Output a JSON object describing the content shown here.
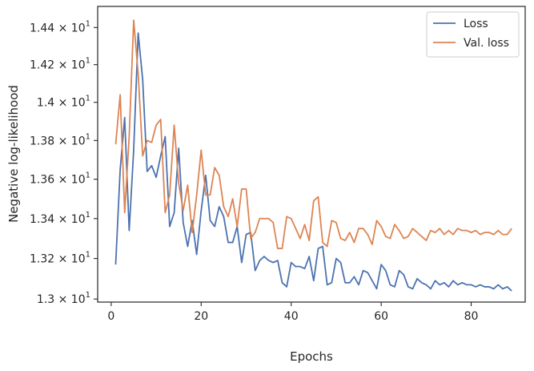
{
  "chart_data": {
    "type": "line",
    "xlabel": "Epochs",
    "ylabel": "Negative log-likelihood",
    "xlim": [
      -3,
      92
    ],
    "ylim": [
      12.985,
      14.515
    ],
    "yscale": "log",
    "xticks": [
      0,
      20,
      40,
      60,
      80
    ],
    "yticks": [
      13.0,
      13.2,
      13.4,
      13.6,
      13.8,
      14.0,
      14.2,
      14.4
    ],
    "ytick_labels": [
      "1.3 × 10",
      "1.32 × 10",
      "1.34 × 10",
      "1.36 × 10",
      "1.38 × 10",
      "1.4 × 10",
      "1.42 × 10",
      "1.44 × 10"
    ],
    "ytick_exponent": "1",
    "legend_position": "top-right",
    "grid": false,
    "x": [
      1,
      2,
      3,
      4,
      5,
      6,
      7,
      8,
      9,
      10,
      11,
      12,
      13,
      14,
      15,
      16,
      17,
      18,
      19,
      20,
      21,
      22,
      23,
      24,
      25,
      26,
      27,
      28,
      29,
      30,
      31,
      32,
      33,
      34,
      35,
      36,
      37,
      38,
      39,
      40,
      41,
      42,
      43,
      44,
      45,
      46,
      47,
      48,
      49,
      50,
      51,
      52,
      53,
      54,
      55,
      56,
      57,
      58,
      59,
      60,
      61,
      62,
      63,
      64,
      65,
      66,
      67,
      68,
      69,
      70,
      71,
      72,
      73,
      74,
      75,
      76,
      77,
      78,
      79,
      80,
      81,
      82,
      83,
      84,
      85,
      86,
      87,
      88,
      89
    ],
    "series": [
      {
        "name": "Loss",
        "color": "#4c72b0",
        "values": [
          13.17,
          13.65,
          13.92,
          13.34,
          13.75,
          14.37,
          14.12,
          13.64,
          13.67,
          13.61,
          13.72,
          13.82,
          13.36,
          13.43,
          13.76,
          13.38,
          13.26,
          13.39,
          13.22,
          13.44,
          13.62,
          13.39,
          13.36,
          13.46,
          13.41,
          13.28,
          13.28,
          13.36,
          13.18,
          13.32,
          13.33,
          13.14,
          13.19,
          13.21,
          13.19,
          13.18,
          13.19,
          13.08,
          13.06,
          13.18,
          13.16,
          13.16,
          13.15,
          13.21,
          13.09,
          13.25,
          13.26,
          13.07,
          13.08,
          13.2,
          13.18,
          13.08,
          13.08,
          13.11,
          13.07,
          13.14,
          13.13,
          13.09,
          13.05,
          13.17,
          13.14,
          13.07,
          13.06,
          13.14,
          13.12,
          13.06,
          13.05,
          13.1,
          13.08,
          13.07,
          13.05,
          13.09,
          13.07,
          13.08,
          13.06,
          13.09,
          13.07,
          13.08,
          13.07,
          13.07,
          13.06,
          13.07,
          13.06,
          13.06,
          13.05,
          13.07,
          13.05,
          13.06,
          13.04
        ]
      },
      {
        "name": "Val. loss",
        "color": "#dd8452",
        "values": [
          13.78,
          14.04,
          13.43,
          13.82,
          14.44,
          14.15,
          13.72,
          13.8,
          13.79,
          13.88,
          13.91,
          13.43,
          13.52,
          13.88,
          13.58,
          13.44,
          13.57,
          13.33,
          13.52,
          13.75,
          13.52,
          13.52,
          13.66,
          13.62,
          13.46,
          13.41,
          13.5,
          13.36,
          13.55,
          13.55,
          13.3,
          13.33,
          13.4,
          13.4,
          13.4,
          13.38,
          13.25,
          13.25,
          13.41,
          13.4,
          13.35,
          13.3,
          13.37,
          13.29,
          13.49,
          13.51,
          13.28,
          13.26,
          13.39,
          13.38,
          13.3,
          13.29,
          13.33,
          13.28,
          13.35,
          13.35,
          13.32,
          13.27,
          13.39,
          13.36,
          13.31,
          13.3,
          13.37,
          13.34,
          13.3,
          13.31,
          13.35,
          13.33,
          13.31,
          13.29,
          13.34,
          13.33,
          13.35,
          13.32,
          13.34,
          13.32,
          13.35,
          13.34,
          13.34,
          13.33,
          13.34,
          13.32,
          13.33,
          13.33,
          13.32,
          13.34,
          13.32,
          13.32,
          13.35
        ]
      }
    ]
  }
}
